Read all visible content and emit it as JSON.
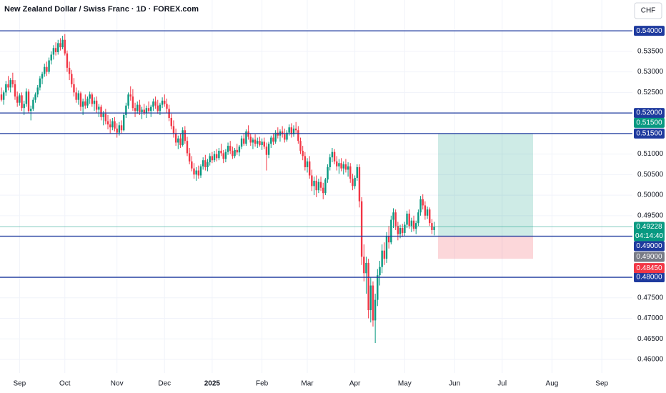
{
  "header": {
    "title": "New Zealand Dollar / Swiss Franc · 1D · FOREX.com",
    "currency": "CHF"
  },
  "chart_data": {
    "type": "candlestick",
    "up_color": "#089981",
    "down_color": "#f23645",
    "level_color": "#1e3a9e",
    "xlim": [
      -0.63,
      278.5
    ],
    "ylim": [
      0.4567,
      0.5475
    ],
    "yticks": [
      {
        "value": 0.535,
        "label": "0.53500"
      },
      {
        "value": 0.53,
        "label": "0.53000"
      },
      {
        "value": 0.525,
        "label": "0.52500"
      },
      {
        "value": 0.51,
        "label": "0.51000"
      },
      {
        "value": 0.505,
        "label": "0.50500"
      },
      {
        "value": 0.5,
        "label": "0.50000"
      },
      {
        "value": 0.495,
        "label": "0.49500"
      },
      {
        "value": 0.475,
        "label": "0.47500"
      },
      {
        "value": 0.47,
        "label": "0.47000"
      },
      {
        "value": 0.465,
        "label": "0.46500"
      },
      {
        "value": 0.46,
        "label": "0.46000"
      }
    ],
    "xticks": [
      {
        "value": 8,
        "label": "Sep"
      },
      {
        "value": 28,
        "label": "Oct"
      },
      {
        "value": 51,
        "label": "Nov"
      },
      {
        "value": 72,
        "label": "Dec"
      },
      {
        "value": 93,
        "label": "2025"
      },
      {
        "value": 115,
        "label": "Feb"
      },
      {
        "value": 135,
        "label": "Mar"
      },
      {
        "value": 156,
        "label": "Apr"
      },
      {
        "value": 178,
        "label": "May"
      },
      {
        "value": 200,
        "label": "Jun"
      },
      {
        "value": 221,
        "label": "Jul"
      },
      {
        "value": 243,
        "label": "Aug"
      },
      {
        "value": 265,
        "label": "Sep"
      }
    ],
    "levels": [
      {
        "value": 0.54,
        "label": "0.54000"
      },
      {
        "value": 0.52,
        "label": "0.52000"
      },
      {
        "value": 0.515,
        "label": "0.51500"
      },
      {
        "value": 0.49,
        "label": "0.49000"
      },
      {
        "value": 0.48,
        "label": "0.48000"
      }
    ],
    "position": {
      "target": {
        "value": 0.515,
        "label": "0.51500",
        "color": "#089981"
      },
      "entry": {
        "value": 0.49,
        "label": "0.49000",
        "color": "#787b86"
      },
      "stop": {
        "value": 0.4845,
        "label": "0.48450",
        "color": "#f23645"
      }
    },
    "price": {
      "value": 0.49228,
      "label": "0.49228",
      "countdown": "04:14:40",
      "color": "#089981"
    },
    "ohlc": [
      [
        0.5245,
        0.5262,
        0.5228,
        0.5232
      ],
      [
        0.5232,
        0.5255,
        0.522,
        0.525
      ],
      [
        0.525,
        0.5278,
        0.5242,
        0.527
      ],
      [
        0.527,
        0.529,
        0.5255,
        0.5262
      ],
      [
        0.5262,
        0.5285,
        0.525,
        0.528
      ],
      [
        0.528,
        0.5298,
        0.5262,
        0.527
      ],
      [
        0.527,
        0.528,
        0.5232,
        0.524
      ],
      [
        0.524,
        0.5252,
        0.5215,
        0.5225
      ],
      [
        0.5225,
        0.5248,
        0.5218,
        0.5243
      ],
      [
        0.5243,
        0.525,
        0.5205,
        0.5212
      ],
      [
        0.5212,
        0.523,
        0.5195,
        0.5222
      ],
      [
        0.5222,
        0.526,
        0.5215,
        0.5252
      ],
      [
        0.5252,
        0.5258,
        0.52,
        0.5205
      ],
      [
        0.5205,
        0.5218,
        0.5182,
        0.521
      ],
      [
        0.521,
        0.5238,
        0.5205,
        0.5232
      ],
      [
        0.5232,
        0.525,
        0.5225,
        0.5245
      ],
      [
        0.5245,
        0.5268,
        0.5238,
        0.5262
      ],
      [
        0.5262,
        0.529,
        0.5255,
        0.5284
      ],
      [
        0.5284,
        0.53,
        0.527,
        0.5295
      ],
      [
        0.5295,
        0.532,
        0.5288,
        0.5312
      ],
      [
        0.5312,
        0.5325,
        0.529,
        0.53
      ],
      [
        0.53,
        0.5335,
        0.5295,
        0.5328
      ],
      [
        0.5328,
        0.535,
        0.5318,
        0.5342
      ],
      [
        0.5342,
        0.5365,
        0.533,
        0.5358
      ],
      [
        0.5358,
        0.5372,
        0.534,
        0.5348
      ],
      [
        0.5348,
        0.5378,
        0.5342,
        0.537
      ],
      [
        0.537,
        0.5382,
        0.5352,
        0.536
      ],
      [
        0.536,
        0.5388,
        0.5355,
        0.5378
      ],
      [
        0.5378,
        0.5392,
        0.534,
        0.5345
      ],
      [
        0.5345,
        0.5352,
        0.53,
        0.531
      ],
      [
        0.531,
        0.5325,
        0.528,
        0.5295
      ],
      [
        0.5295,
        0.5305,
        0.5262,
        0.527
      ],
      [
        0.527,
        0.5285,
        0.524,
        0.525
      ],
      [
        0.525,
        0.5262,
        0.5225,
        0.5232
      ],
      [
        0.5232,
        0.5255,
        0.522,
        0.5248
      ],
      [
        0.5248,
        0.5252,
        0.5205,
        0.5215
      ],
      [
        0.5215,
        0.5235,
        0.5195,
        0.5228
      ],
      [
        0.5228,
        0.5245,
        0.521,
        0.5218
      ],
      [
        0.5218,
        0.524,
        0.5212,
        0.5235
      ],
      [
        0.5235,
        0.5252,
        0.5222,
        0.5245
      ],
      [
        0.5245,
        0.525,
        0.5215,
        0.5222
      ],
      [
        0.5222,
        0.5238,
        0.5205,
        0.523
      ],
      [
        0.523,
        0.524,
        0.52,
        0.5208
      ],
      [
        0.5208,
        0.5222,
        0.519,
        0.5215
      ],
      [
        0.5215,
        0.522,
        0.5182,
        0.519
      ],
      [
        0.519,
        0.5205,
        0.517,
        0.5198
      ],
      [
        0.5198,
        0.521,
        0.5172,
        0.518
      ],
      [
        0.518,
        0.5195,
        0.516,
        0.5172
      ],
      [
        0.5172,
        0.5185,
        0.515,
        0.5165
      ],
      [
        0.5165,
        0.5188,
        0.5158,
        0.518
      ],
      [
        0.518,
        0.519,
        0.5155,
        0.5162
      ],
      [
        0.5162,
        0.5175,
        0.514,
        0.5152
      ],
      [
        0.5152,
        0.5178,
        0.5145,
        0.517
      ],
      [
        0.517,
        0.5182,
        0.515,
        0.5158
      ],
      [
        0.5158,
        0.52,
        0.5155,
        0.5195
      ],
      [
        0.5195,
        0.5225,
        0.5188,
        0.5218
      ],
      [
        0.5218,
        0.525,
        0.521,
        0.5245
      ],
      [
        0.5245,
        0.5265,
        0.523,
        0.524
      ],
      [
        0.524,
        0.5258,
        0.5205,
        0.5212
      ],
      [
        0.5212,
        0.5225,
        0.519,
        0.5205
      ],
      [
        0.5205,
        0.5228,
        0.5198,
        0.522
      ],
      [
        0.522,
        0.5232,
        0.5195,
        0.5202
      ],
      [
        0.5202,
        0.5215,
        0.5185,
        0.5208
      ],
      [
        0.5208,
        0.5222,
        0.5195,
        0.52
      ],
      [
        0.52,
        0.5218,
        0.5188,
        0.5212
      ],
      [
        0.5212,
        0.5228,
        0.52,
        0.5205
      ],
      [
        0.5205,
        0.522,
        0.519,
        0.5215
      ],
      [
        0.5215,
        0.5235,
        0.5205,
        0.5228
      ],
      [
        0.5228,
        0.524,
        0.521,
        0.5218
      ],
      [
        0.5218,
        0.5232,
        0.5198,
        0.5205
      ],
      [
        0.5205,
        0.5225,
        0.5195,
        0.522
      ],
      [
        0.522,
        0.5238,
        0.5212,
        0.523
      ],
      [
        0.523,
        0.5245,
        0.5215,
        0.5222
      ],
      [
        0.5222,
        0.5235,
        0.52,
        0.521
      ],
      [
        0.521,
        0.522,
        0.518,
        0.5188
      ],
      [
        0.5188,
        0.5198,
        0.516,
        0.5168
      ],
      [
        0.5168,
        0.5182,
        0.514,
        0.515
      ],
      [
        0.515,
        0.5162,
        0.512,
        0.5128
      ],
      [
        0.5128,
        0.5145,
        0.5112,
        0.5138
      ],
      [
        0.5138,
        0.515,
        0.5115,
        0.5122
      ],
      [
        0.5122,
        0.5165,
        0.5118,
        0.5158
      ],
      [
        0.5158,
        0.5168,
        0.5125,
        0.5132
      ],
      [
        0.5132,
        0.5142,
        0.5095,
        0.5102
      ],
      [
        0.5102,
        0.5115,
        0.5075,
        0.5082
      ],
      [
        0.5082,
        0.5095,
        0.5058,
        0.5065
      ],
      [
        0.5065,
        0.5078,
        0.504,
        0.505
      ],
      [
        0.505,
        0.5068,
        0.5035,
        0.506
      ],
      [
        0.506,
        0.5072,
        0.504,
        0.5048
      ],
      [
        0.5048,
        0.5075,
        0.5042,
        0.507
      ],
      [
        0.507,
        0.5092,
        0.5062,
        0.5085
      ],
      [
        0.5085,
        0.5098,
        0.506,
        0.5068
      ],
      [
        0.5068,
        0.5088,
        0.5058,
        0.508
      ],
      [
        0.508,
        0.5102,
        0.5072,
        0.5095
      ],
      [
        0.5095,
        0.5105,
        0.5078,
        0.5085
      ],
      [
        0.5085,
        0.5108,
        0.508,
        0.51
      ],
      [
        0.51,
        0.5112,
        0.5082,
        0.509
      ],
      [
        0.509,
        0.5115,
        0.5085,
        0.5108
      ],
      [
        0.5108,
        0.5125,
        0.5095,
        0.5102
      ],
      [
        0.5102,
        0.511,
        0.5078,
        0.5088
      ],
      [
        0.5088,
        0.5112,
        0.508,
        0.5105
      ],
      [
        0.5105,
        0.5128,
        0.5098,
        0.512
      ],
      [
        0.512,
        0.5132,
        0.51,
        0.5108
      ],
      [
        0.5108,
        0.5118,
        0.5088,
        0.5095
      ],
      [
        0.5095,
        0.5115,
        0.509,
        0.511
      ],
      [
        0.511,
        0.5125,
        0.5098,
        0.5104
      ],
      [
        0.5104,
        0.5122,
        0.5095,
        0.5118
      ],
      [
        0.5118,
        0.5145,
        0.5112,
        0.5138
      ],
      [
        0.5138,
        0.515,
        0.512,
        0.5125
      ],
      [
        0.5125,
        0.516,
        0.512,
        0.5155
      ],
      [
        0.5155,
        0.517,
        0.5135,
        0.5142
      ],
      [
        0.5142,
        0.515,
        0.512,
        0.5128
      ],
      [
        0.5128,
        0.514,
        0.5112,
        0.5135
      ],
      [
        0.5135,
        0.5148,
        0.5118,
        0.5125
      ],
      [
        0.5125,
        0.514,
        0.5115,
        0.5132
      ],
      [
        0.5132,
        0.5142,
        0.5118,
        0.5122
      ],
      [
        0.5122,
        0.5138,
        0.511,
        0.513
      ],
      [
        0.513,
        0.514,
        0.5112,
        0.5118
      ],
      [
        0.5118,
        0.5128,
        0.506,
        0.5098
      ],
      [
        0.5098,
        0.513,
        0.509,
        0.5125
      ],
      [
        0.5125,
        0.5145,
        0.5115,
        0.514
      ],
      [
        0.514,
        0.515,
        0.5122,
        0.513
      ],
      [
        0.513,
        0.5158,
        0.5125,
        0.5152
      ],
      [
        0.5152,
        0.5165,
        0.5138,
        0.5145
      ],
      [
        0.5145,
        0.516,
        0.513,
        0.5155
      ],
      [
        0.5155,
        0.5168,
        0.514,
        0.5148
      ],
      [
        0.5148,
        0.5162,
        0.5128,
        0.5135
      ],
      [
        0.5135,
        0.5158,
        0.513,
        0.5152
      ],
      [
        0.5152,
        0.5172,
        0.5145,
        0.5165
      ],
      [
        0.5165,
        0.5175,
        0.514,
        0.5148
      ],
      [
        0.5148,
        0.517,
        0.5142,
        0.5162
      ],
      [
        0.5162,
        0.5178,
        0.515,
        0.5158
      ],
      [
        0.5158,
        0.5168,
        0.5125,
        0.5132
      ],
      [
        0.5132,
        0.514,
        0.51,
        0.5108
      ],
      [
        0.5108,
        0.512,
        0.5085,
        0.5095
      ],
      [
        0.5095,
        0.5105,
        0.506,
        0.5068
      ],
      [
        0.5068,
        0.509,
        0.5055,
        0.5082
      ],
      [
        0.5082,
        0.5095,
        0.504,
        0.5048
      ],
      [
        0.5048,
        0.5062,
        0.501,
        0.5022
      ],
      [
        0.5022,
        0.5045,
        0.5,
        0.5035
      ],
      [
        0.5035,
        0.5048,
        0.4995,
        0.5012
      ],
      [
        0.5012,
        0.504,
        0.5005,
        0.5032
      ],
      [
        0.5032,
        0.5045,
        0.501,
        0.5018
      ],
      [
        0.5018,
        0.503,
        0.499,
        0.5005
      ],
      [
        0.5005,
        0.5042,
        0.5,
        0.5038
      ],
      [
        0.5038,
        0.5075,
        0.503,
        0.5068
      ],
      [
        0.5068,
        0.51,
        0.506,
        0.5092
      ],
      [
        0.5092,
        0.5115,
        0.508,
        0.5105
      ],
      [
        0.5105,
        0.5112,
        0.5075,
        0.5082
      ],
      [
        0.5082,
        0.5095,
        0.506,
        0.507
      ],
      [
        0.507,
        0.5088,
        0.5052,
        0.5078
      ],
      [
        0.5078,
        0.509,
        0.5058,
        0.5065
      ],
      [
        0.5065,
        0.5082,
        0.505,
        0.5075
      ],
      [
        0.5075,
        0.5088,
        0.5055,
        0.5062
      ],
      [
        0.5062,
        0.508,
        0.5045,
        0.507
      ],
      [
        0.507,
        0.5078,
        0.503,
        0.504
      ],
      [
        0.504,
        0.5052,
        0.5012,
        0.5022
      ],
      [
        0.5022,
        0.5048,
        0.5015,
        0.5042
      ],
      [
        0.5042,
        0.5075,
        0.5035,
        0.5068
      ],
      [
        0.5068,
        0.5075,
        0.497,
        0.4985
      ],
      [
        0.4985,
        0.4995,
        0.483,
        0.485
      ],
      [
        0.485,
        0.488,
        0.479,
        0.481
      ],
      [
        0.481,
        0.485,
        0.476,
        0.4835
      ],
      [
        0.4835,
        0.4845,
        0.47,
        0.472
      ],
      [
        0.472,
        0.48,
        0.469,
        0.478
      ],
      [
        0.478,
        0.479,
        0.468,
        0.4695
      ],
      [
        0.4695,
        0.476,
        0.464,
        0.4745
      ],
      [
        0.4745,
        0.482,
        0.473,
        0.4805
      ],
      [
        0.4805,
        0.484,
        0.478,
        0.4825
      ],
      [
        0.4825,
        0.488,
        0.481,
        0.4865
      ],
      [
        0.4865,
        0.4885,
        0.483,
        0.4845
      ],
      [
        0.4845,
        0.491,
        0.4835,
        0.49
      ],
      [
        0.49,
        0.4925,
        0.487,
        0.4885
      ],
      [
        0.4885,
        0.495,
        0.488,
        0.494
      ],
      [
        0.494,
        0.4968,
        0.492,
        0.4958
      ],
      [
        0.4958,
        0.4965,
        0.4915,
        0.4925
      ],
      [
        0.4925,
        0.4935,
        0.489,
        0.4905
      ],
      [
        0.4905,
        0.4928,
        0.4895,
        0.492
      ],
      [
        0.492,
        0.493,
        0.4898,
        0.4908
      ],
      [
        0.4908,
        0.4935,
        0.49,
        0.4928
      ],
      [
        0.4928,
        0.4962,
        0.492,
        0.4955
      ],
      [
        0.4955,
        0.4965,
        0.4918,
        0.4925
      ],
      [
        0.4925,
        0.4945,
        0.491,
        0.4938
      ],
      [
        0.4938,
        0.495,
        0.4912,
        0.4918
      ],
      [
        0.4918,
        0.4938,
        0.4905,
        0.4932
      ],
      [
        0.4932,
        0.4965,
        0.4925,
        0.4958
      ],
      [
        0.4958,
        0.4998,
        0.495,
        0.499
      ],
      [
        0.499,
        0.5002,
        0.4965,
        0.4975
      ],
      [
        0.4975,
        0.4985,
        0.494,
        0.495
      ],
      [
        0.495,
        0.4972,
        0.4942,
        0.4965
      ],
      [
        0.4965,
        0.497,
        0.4925,
        0.4932
      ],
      [
        0.4932,
        0.4942,
        0.4905,
        0.4915
      ],
      [
        0.4915,
        0.4935,
        0.4902,
        0.49228
      ]
    ]
  }
}
